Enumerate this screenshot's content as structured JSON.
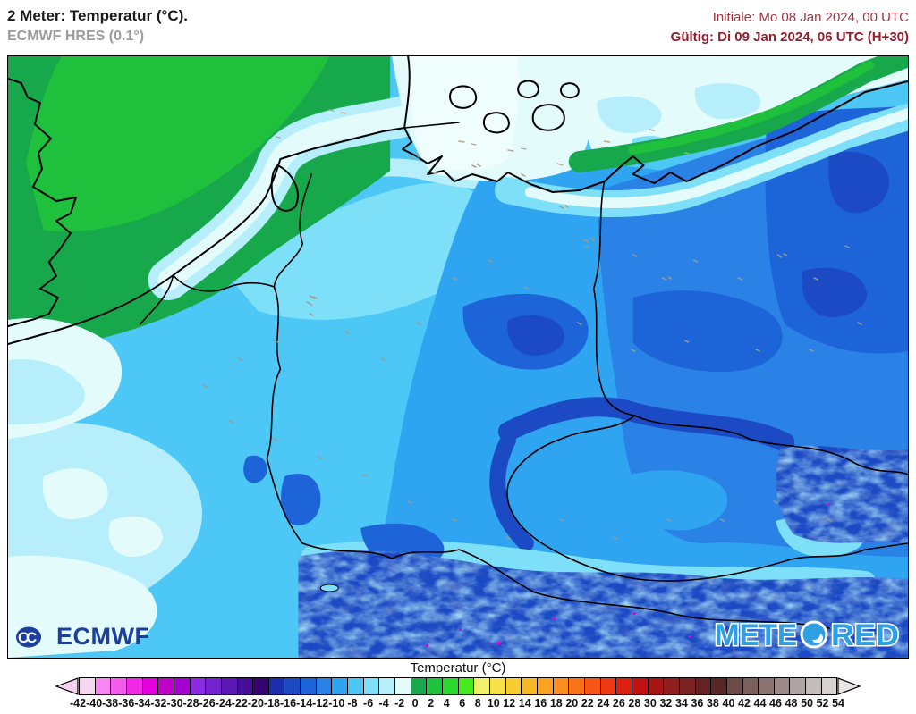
{
  "header": {
    "title": "2 Meter: Temperatur (°C).",
    "subtitle": "ECMWF HRES (0.1°)",
    "init_label": "Initiale: Mo 08 Jan 2024, 00 UTC",
    "valid_label": "Gültig: Di 09 Jan 2024, 06 UTC (H+30)"
  },
  "logos": {
    "ecmwf": "ECMWF",
    "meteored_part1": "METE",
    "meteored_part2": "RED"
  },
  "colorbar": {
    "title": "Temperatur (°C)",
    "unit": "°C",
    "min": -42,
    "max": 54,
    "step": 2,
    "labels": [
      -42,
      -40,
      -38,
      -36,
      -34,
      -32,
      -30,
      -28,
      -26,
      -24,
      -22,
      -20,
      -18,
      -16,
      -14,
      -12,
      -10,
      -8,
      -6,
      -4,
      -2,
      0,
      2,
      4,
      6,
      8,
      10,
      12,
      14,
      16,
      18,
      20,
      22,
      24,
      26,
      28,
      30,
      32,
      34,
      36,
      38,
      40,
      42,
      44,
      46,
      48,
      50,
      52,
      54
    ],
    "colors": [
      "#f9d7f3",
      "#f886f0",
      "#f55ded",
      "#f02ae6",
      "#e300dc",
      "#bf00c8",
      "#a500d2",
      "#8c2ce2",
      "#7522cf",
      "#5c18b4",
      "#470d98",
      "#360370",
      "#1b2fae",
      "#1c4ac4",
      "#1e64d9",
      "#2a82e7",
      "#2fa4f1",
      "#4dc7f5",
      "#7edff8",
      "#b6effb",
      "#e3fbfb",
      "#17a84c",
      "#1fc13c",
      "#2ad72c",
      "#45e91c",
      "#f2ef68",
      "#f7e148",
      "#f9cc31",
      "#f9b825",
      "#f9a321",
      "#f98d1e",
      "#f9721c",
      "#f65718",
      "#ee3a14",
      "#dc2010",
      "#c31111",
      "#a81515",
      "#901f1f",
      "#7b2323",
      "#642322",
      "#582725",
      "#6b4a47",
      "#7a5f5c",
      "#8a7370",
      "#9d8a88",
      "#b0a3a1",
      "#c4bbba",
      "#d7d1d0"
    ],
    "arrow_left_color": "#f6d0ef",
    "arrow_right_color": "#e9e5e4"
  },
  "map_palette": {
    "white_cold": "#f0fdfd",
    "pale": "#e3fbfb",
    "cyan_pale": "#b6effb",
    "cyan": "#7edff8",
    "blue_light": "#4dc7f5",
    "blue": "#2fa4f1",
    "blue_med": "#2a82e7",
    "blue_deep": "#1e64d9",
    "blue_dark": "#1c4ac4",
    "navy": "#1b2fae",
    "green": "#17a84c",
    "green_bright": "#1fc13c",
    "magenta": "#e300dc",
    "city_gray": "#a09a8c",
    "sea_track_tan": "#b9a98e",
    "brand_blue": "#2d9fe2",
    "ecmwf_navy": "#1c3e9c",
    "header_red": "#a03540",
    "header_red_bold": "#931d2b",
    "title_black": "#1a1a1a",
    "subtitle_gray": "#9c9c9c"
  }
}
